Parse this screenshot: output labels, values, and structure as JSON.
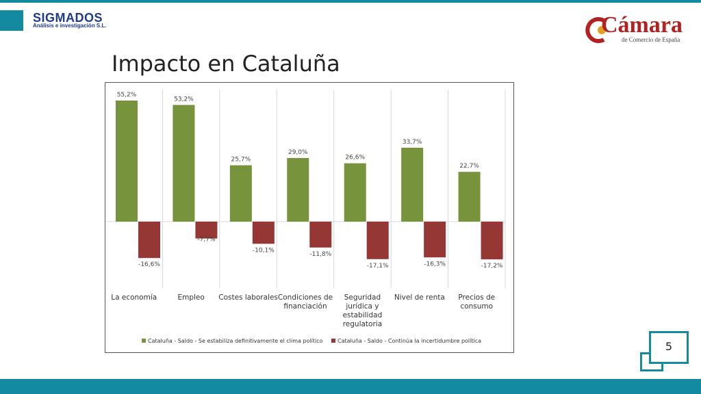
{
  "header": {
    "company": "SIGMADOS",
    "company_tagline": "Análisis e investigación S.L.",
    "partner_name": "Cámara",
    "partner_subtitle": "de Comercio de España"
  },
  "slide": {
    "title": "Impacto en Cataluña",
    "page_number": "5"
  },
  "colors": {
    "accent": "#138aa0",
    "series_green": "#77933c",
    "series_red": "#953735"
  },
  "chart_data": {
    "type": "bar",
    "categories": [
      "La economía",
      "Empleo",
      "Costes laborales",
      "Condiciones de financiación",
      "Seguridad jurídica y estabilidad regulatoria",
      "Nivel de renta",
      "Precios de consumo"
    ],
    "category_lines": [
      [
        "La economía"
      ],
      [
        "Empleo"
      ],
      [
        "Costes laborales"
      ],
      [
        "Condiciones de",
        "financiación"
      ],
      [
        "Seguridad",
        "jurídica y",
        "estabilidad",
        "regulatoria"
      ],
      [
        "Nivel de renta"
      ],
      [
        "Precios de",
        "consumo"
      ]
    ],
    "series": [
      {
        "name": "Cataluña - Saldo - Se estabiliza definitivamente el clima político",
        "values": [
          55.2,
          53.2,
          25.7,
          29.0,
          26.6,
          33.7,
          22.7
        ],
        "labels": [
          "55,2%",
          "53,2%",
          "25,7%",
          "29,0%",
          "26,6%",
          "33,7%",
          "22,7%"
        ],
        "color": "#77933c"
      },
      {
        "name": "Cataluña - Saldo - Continúa la incertidumbre política",
        "values": [
          -16.6,
          -7.7,
          -10.1,
          -11.8,
          -17.1,
          -16.3,
          -17.2
        ],
        "labels": [
          "-16,6%",
          "-7,7%",
          "-10,1%",
          "-11,8%",
          "-17,1%",
          "-16,3%",
          "-17,2%"
        ],
        "color": "#953735"
      }
    ],
    "ylim": [
      -20,
      60
    ],
    "legend_position": "bottom",
    "grid": "vertical"
  }
}
